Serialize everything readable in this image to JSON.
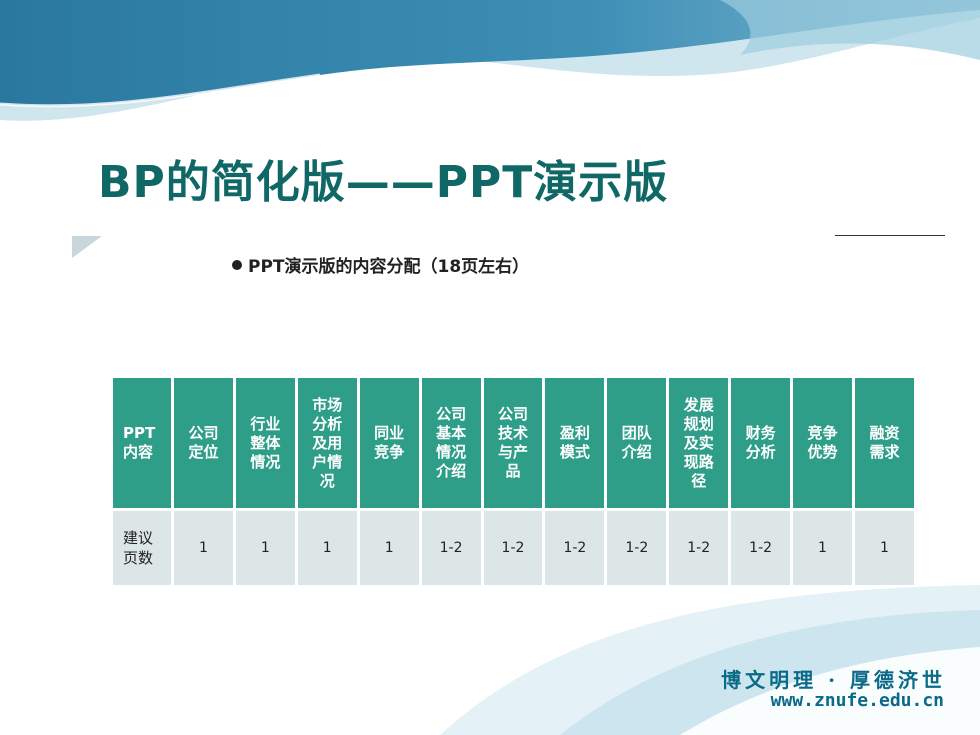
{
  "slide": {
    "title": "BP的简化版——PPT演示版",
    "bullet": "PPT演示版的内容分配（18页左右）"
  },
  "table": {
    "headers": [
      "PPT\n内容",
      "公司\n定位",
      "行业\n整体\n情况",
      "市场\n分析\n及用\n户情\n况",
      "同业\n竞争",
      "公司\n基本\n情况\n介绍",
      "公司\n技术\n与产\n品",
      "盈利\n模式",
      "团队\n介绍",
      "发展\n规划\n及实\n现路\n径",
      "财务\n分析",
      "竞争\n优势",
      "融资\n需求"
    ],
    "row": [
      "建议\n页数",
      "1",
      "1",
      "1",
      "1",
      "1-2",
      "1-2",
      "1-2",
      "1-2",
      "1-2",
      "1-2",
      "1",
      "1"
    ]
  },
  "footer": {
    "motto": "博文明理 · 厚德济世",
    "url": "www.znufe.edu.cn"
  },
  "colors": {
    "title": "#0f6766",
    "header_fill": "#2f9e89",
    "body_fill": "#dde6e6",
    "footer": "#0a6a88",
    "wave_dark": "#2f7fa5",
    "wave_light": "#b9dbe6"
  }
}
